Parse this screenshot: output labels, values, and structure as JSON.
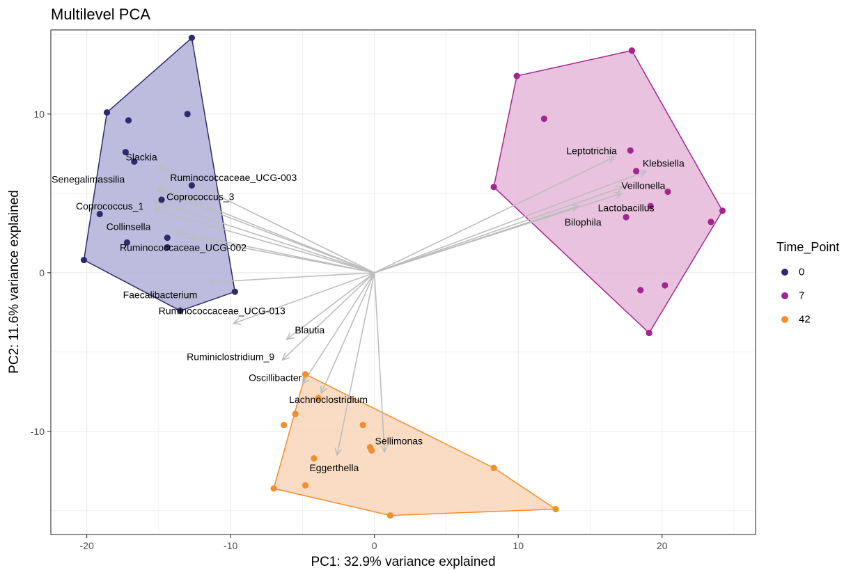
{
  "chart_data": {
    "type": "scatter",
    "title": "Multilevel PCA",
    "xlabel": "PC1: 32.9% variance explained",
    "ylabel": "PC2: 11.6% variance explained",
    "xlim": [
      -22.5,
      26.5
    ],
    "ylim": [
      -16.5,
      15.3
    ],
    "x_ticks": [
      -20,
      -10,
      0,
      10,
      20
    ],
    "y_ticks": [
      -10,
      0,
      10
    ],
    "x_tick_labels": [
      "-20",
      "-10",
      "0",
      "10",
      "20"
    ],
    "y_tick_labels": [
      "-10",
      "0",
      "10"
    ],
    "grid": true,
    "legend": {
      "title": "Time_Point",
      "position": "right"
    },
    "series": [
      {
        "name": "0",
        "color": "#2e2a6e",
        "fill": "#b1b0d8",
        "points": [
          [
            -12.7,
            14.8
          ],
          [
            -18.6,
            10.1
          ],
          [
            -17.1,
            9.6
          ],
          [
            -13.0,
            10.0
          ],
          [
            -17.3,
            7.6
          ],
          [
            -16.7,
            7.0
          ],
          [
            -12.7,
            5.5
          ],
          [
            -14.8,
            4.6
          ],
          [
            -19.1,
            3.7
          ],
          [
            -14.4,
            2.2
          ],
          [
            -17.2,
            1.9
          ],
          [
            -14.4,
            1.6
          ],
          [
            -20.2,
            0.8
          ],
          [
            -9.7,
            -1.2
          ],
          [
            -13.5,
            -2.4
          ]
        ],
        "hull": [
          [
            -12.7,
            14.8
          ],
          [
            -18.6,
            10.1
          ],
          [
            -20.2,
            0.8
          ],
          [
            -13.5,
            -2.4
          ],
          [
            -9.7,
            -1.2
          ]
        ]
      },
      {
        "name": "7",
        "color": "#a3258f",
        "fill": "#e4b7d8",
        "points": [
          [
            17.9,
            14.0
          ],
          [
            9.9,
            12.4
          ],
          [
            11.8,
            9.7
          ],
          [
            17.8,
            7.7
          ],
          [
            18.2,
            6.4
          ],
          [
            20.4,
            5.1
          ],
          [
            8.3,
            5.4
          ],
          [
            19.2,
            4.2
          ],
          [
            24.2,
            3.9
          ],
          [
            17.5,
            3.5
          ],
          [
            23.4,
            3.2
          ],
          [
            20.2,
            -0.8
          ],
          [
            18.5,
            -1.1
          ],
          [
            19.1,
            -3.8
          ]
        ],
        "hull": [
          [
            17.9,
            14.0
          ],
          [
            24.2,
            3.9
          ],
          [
            19.1,
            -3.8
          ],
          [
            8.3,
            5.4
          ],
          [
            9.9,
            12.4
          ]
        ]
      },
      {
        "name": "42",
        "color": "#f28e2b",
        "fill": "#f8d6b8",
        "points": [
          [
            -4.8,
            -6.4
          ],
          [
            -3.9,
            -7.9
          ],
          [
            -5.5,
            -8.9
          ],
          [
            -6.3,
            -9.6
          ],
          [
            -0.8,
            -9.6
          ],
          [
            -0.3,
            -11.0
          ],
          [
            -0.2,
            -11.2
          ],
          [
            -4.2,
            -11.7
          ],
          [
            -4.8,
            -13.4
          ],
          [
            -7.0,
            -13.6
          ],
          [
            8.3,
            -12.3
          ],
          [
            12.6,
            -14.9
          ],
          [
            1.1,
            -15.3
          ]
        ],
        "hull": [
          [
            -4.8,
            -6.4
          ],
          [
            8.3,
            -12.3
          ],
          [
            12.6,
            -14.9
          ],
          [
            1.1,
            -15.3
          ],
          [
            -7.0,
            -13.6
          ]
        ]
      }
    ],
    "loadings": [
      {
        "label": "Slackia",
        "end": [
          -15.0,
          6.7
        ]
      },
      {
        "label": "Senegalimassilia",
        "end": [
          -15.1,
          5.2
        ]
      },
      {
        "label": "Ruminococcaceae_UCG-003",
        "end": [
          -15.0,
          5.4
        ]
      },
      {
        "label": "Coprococcus_3",
        "end": [
          -15.3,
          4.5
        ]
      },
      {
        "label": "Coprococcus_1",
        "end": [
          -15.4,
          4.0
        ]
      },
      {
        "label": "Collinsella",
        "end": [
          -13.9,
          2.6
        ]
      },
      {
        "label": "Ruminococcaceae_UCG-002",
        "end": [
          -12.8,
          2.2
        ]
      },
      {
        "label": "Faecalibacterium",
        "end": [
          -11.5,
          -0.6
        ]
      },
      {
        "label": "Ruminococcaceae_UCG-013",
        "end": [
          -9.8,
          -3.2
        ]
      },
      {
        "label": "Blautia",
        "end": [
          -6.1,
          -4.2
        ]
      },
      {
        "label": "Ruminiclostridium_9",
        "end": [
          -6.4,
          -5.5
        ]
      },
      {
        "label": "Oscillibacter",
        "end": [
          -5.0,
          -7.0
        ]
      },
      {
        "label": "Lachnoclostridium",
        "end": [
          -3.7,
          -7.6
        ]
      },
      {
        "label": "Eggerthella",
        "end": [
          -2.6,
          -11.5
        ]
      },
      {
        "label": "Sellimonas",
        "end": [
          0.7,
          -11.3
        ]
      },
      {
        "label": "Leptotrichia",
        "end": [
          16.7,
          7.3
        ]
      },
      {
        "label": "Klebsiella",
        "end": [
          18.9,
          6.4
        ]
      },
      {
        "label": "Veillonella",
        "end": [
          17.3,
          5.4
        ]
      },
      {
        "label": "Lactobacillus",
        "end": [
          17.2,
          5.0
        ]
      },
      {
        "label": "Bilophila",
        "end": [
          14.2,
          4.2
        ]
      }
    ],
    "loading_labels": [
      {
        "text": "Slackia",
        "pos": [
          -16.2,
          7.3
        ]
      },
      {
        "text": "Senegalimassilia",
        "pos": [
          -19.9,
          5.9
        ]
      },
      {
        "text": "Ruminococcaceae_UCG-003",
        "pos": [
          -9.8,
          6.0
        ]
      },
      {
        "text": "Coprococcus_3",
        "pos": [
          -12.1,
          4.8
        ]
      },
      {
        "text": "Coprococcus_1",
        "pos": [
          -18.4,
          4.2
        ]
      },
      {
        "text": "Collinsella",
        "pos": [
          -17.1,
          2.9
        ]
      },
      {
        "text": "Ruminococcaceae_UCG-002",
        "pos": [
          -13.3,
          1.6
        ]
      },
      {
        "text": "Faecalibacterium",
        "pos": [
          -14.9,
          -1.4
        ]
      },
      {
        "text": "Ruminococcaceae_UCG-013",
        "pos": [
          -10.6,
          -2.4
        ]
      },
      {
        "text": "Blautia",
        "pos": [
          -4.5,
          -3.6
        ]
      },
      {
        "text": "Ruminiclostridium_9",
        "pos": [
          -10.0,
          -5.3
        ]
      },
      {
        "text": "Oscillibacter",
        "pos": [
          -6.9,
          -6.6
        ]
      },
      {
        "text": "Lachnoclostridium",
        "pos": [
          -3.2,
          -8.0
        ]
      },
      {
        "text": "Sellimonas",
        "pos": [
          1.7,
          -10.6
        ]
      },
      {
        "text": "Eggerthella",
        "pos": [
          -2.8,
          -12.3
        ]
      },
      {
        "text": "Leptotrichia",
        "pos": [
          15.1,
          7.7
        ]
      },
      {
        "text": "Klebsiella",
        "pos": [
          20.1,
          6.9
        ]
      },
      {
        "text": "Veillonella",
        "pos": [
          18.7,
          5.5
        ]
      },
      {
        "text": "Lactobacillus",
        "pos": [
          17.5,
          4.1
        ]
      },
      {
        "text": "Bilophila",
        "pos": [
          14.5,
          3.2
        ]
      }
    ]
  }
}
